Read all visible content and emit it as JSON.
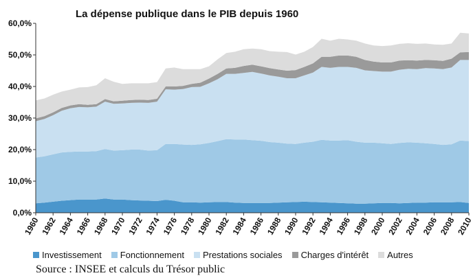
{
  "chart_data": {
    "type": "area",
    "stacked": true,
    "title": "La dépense publique dans le PIB depuis 1960",
    "xlabel": "",
    "ylabel": "",
    "ylim": [
      0,
      60
    ],
    "y_ticks": [
      "0,0%",
      "10,0%",
      "20,0%",
      "30,0%",
      "40,0%",
      "50,0%",
      "60,0%"
    ],
    "x_ticks": [
      "1960",
      "1962",
      "1964",
      "1966",
      "1968",
      "1970",
      "1972",
      "1974",
      "1976",
      "1978",
      "1980",
      "1982",
      "1984",
      "1986",
      "1988",
      "1990",
      "1992",
      "1994",
      "1996",
      "1998",
      "2000",
      "2002",
      "2004",
      "2006",
      "2008",
      "2010"
    ],
    "x": [
      1960,
      1961,
      1962,
      1963,
      1964,
      1965,
      1966,
      1967,
      1968,
      1969,
      1970,
      1971,
      1972,
      1973,
      1974,
      1975,
      1976,
      1977,
      1978,
      1979,
      1980,
      1981,
      1982,
      1983,
      1984,
      1985,
      1986,
      1987,
      1988,
      1989,
      1990,
      1991,
      1992,
      1993,
      1994,
      1995,
      1996,
      1997,
      1998,
      1999,
      2000,
      2001,
      2002,
      2003,
      2004,
      2005,
      2006,
      2007,
      2008,
      2009,
      2010
    ],
    "grid": false,
    "legend_position": "bottom",
    "series": [
      {
        "name": "Investissement",
        "color": "#4a96cc",
        "values": [
          3.0,
          3.2,
          3.5,
          3.8,
          4.0,
          4.2,
          4.2,
          4.2,
          4.5,
          4.2,
          4.2,
          4.0,
          3.9,
          3.8,
          3.7,
          4.1,
          3.8,
          3.3,
          3.3,
          3.2,
          3.3,
          3.4,
          3.4,
          3.2,
          3.1,
          3.1,
          3.1,
          3.1,
          3.2,
          3.3,
          3.4,
          3.5,
          3.4,
          3.3,
          3.2,
          3.1,
          3.0,
          2.9,
          2.9,
          3.0,
          3.1,
          3.1,
          3.0,
          3.1,
          3.2,
          3.2,
          3.3,
          3.3,
          3.3,
          3.4,
          3.1
        ]
      },
      {
        "name": "Fonctionnement",
        "color": "#9fc9e6",
        "values": [
          14.5,
          14.7,
          15.0,
          15.3,
          15.3,
          15.2,
          15.2,
          15.3,
          15.7,
          15.5,
          15.6,
          16.0,
          16.1,
          15.9,
          16.1,
          17.7,
          18.0,
          18.3,
          18.2,
          18.5,
          18.8,
          19.3,
          19.9,
          20.0,
          20.1,
          19.9,
          19.7,
          19.3,
          19.0,
          18.6,
          18.4,
          18.7,
          19.1,
          19.8,
          19.7,
          19.8,
          20.0,
          19.6,
          19.3,
          19.2,
          18.9,
          18.7,
          19.1,
          19.2,
          19.0,
          18.8,
          18.5,
          18.2,
          18.4,
          19.5,
          19.6
        ]
      },
      {
        "name": "Prestations sociales",
        "color": "#c9e0f1",
        "values": [
          11.5,
          11.8,
          12.4,
          13.2,
          13.8,
          14.1,
          14.0,
          14.1,
          15.0,
          14.8,
          14.8,
          14.8,
          14.9,
          15.1,
          15.4,
          17.3,
          17.2,
          17.6,
          18.3,
          18.2,
          18.9,
          19.6,
          20.7,
          20.8,
          21.1,
          21.6,
          21.3,
          21.1,
          20.9,
          20.7,
          20.8,
          21.3,
          21.9,
          23.1,
          23.0,
          23.3,
          23.2,
          23.4,
          22.9,
          22.7,
          22.7,
          22.9,
          23.2,
          23.3,
          23.3,
          23.8,
          23.9,
          24.0,
          24.3,
          25.5,
          25.7
        ]
      },
      {
        "name": "Charges d'intérêt",
        "color": "#9a9a9a",
        "values": [
          0.9,
          0.9,
          0.9,
          0.9,
          0.9,
          0.9,
          0.8,
          0.8,
          0.8,
          0.8,
          0.9,
          0.9,
          0.9,
          0.9,
          0.9,
          0.9,
          1.0,
          1.0,
          1.0,
          1.3,
          1.5,
          1.7,
          1.7,
          1.9,
          2.2,
          2.3,
          2.3,
          2.3,
          2.3,
          2.4,
          2.6,
          2.7,
          2.9,
          3.2,
          3.5,
          3.6,
          3.6,
          3.5,
          3.3,
          3.0,
          2.9,
          2.9,
          2.9,
          2.7,
          2.7,
          2.6,
          2.6,
          2.6,
          2.8,
          2.4,
          2.5
        ]
      },
      {
        "name": "Autres",
        "color": "#dcdcdc",
        "values": [
          5.7,
          5.6,
          5.6,
          5.2,
          5.0,
          5.3,
          5.6,
          6.0,
          6.6,
          6.2,
          5.3,
          5.3,
          5.2,
          5.3,
          5.3,
          5.7,
          6.0,
          5.3,
          4.7,
          4.3,
          3.9,
          4.6,
          4.9,
          5.1,
          5.3,
          5.1,
          5.4,
          5.4,
          5.6,
          5.9,
          4.9,
          4.8,
          5.2,
          5.7,
          5.1,
          5.3,
          5.1,
          5.1,
          5.2,
          5.1,
          5.2,
          5.4,
          5.3,
          5.4,
          5.3,
          5.2,
          5.0,
          5.1,
          4.8,
          6.2,
          5.9
        ]
      }
    ]
  },
  "source_text": "Source : INSEE et calculs du Trésor public"
}
